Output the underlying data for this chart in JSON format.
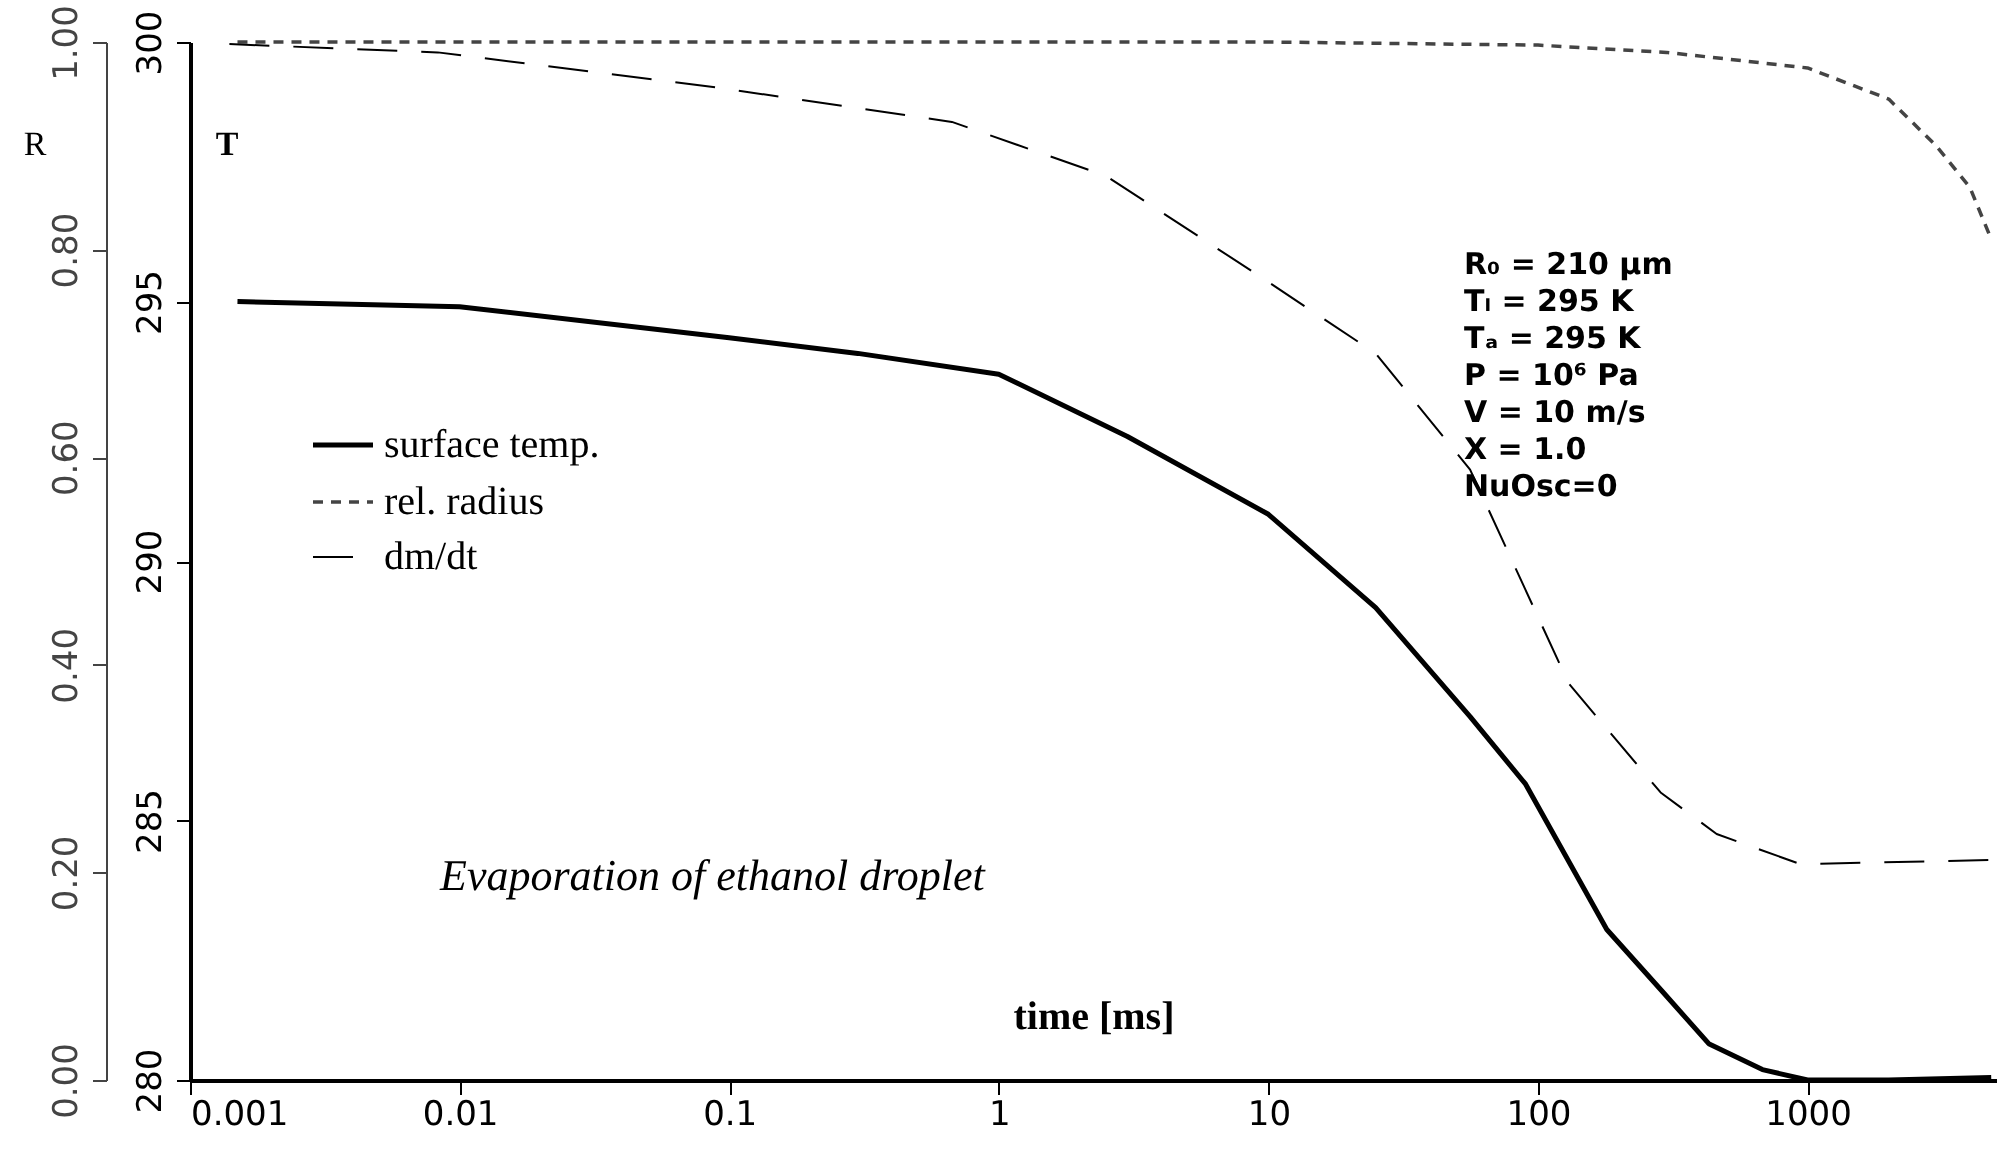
{
  "chart_data": {
    "type": "line",
    "xlabel": "time [ms]",
    "ylabel": "R",
    "y2label": "T",
    "log": "x",
    "legend": "left",
    "grid": false,
    "xlim": [
      0.001,
      5000
    ],
    "xticks": [
      0.001,
      0.01,
      0.1,
      1,
      10,
      100,
      1000
    ],
    "ylim": [
      0,
      1
    ],
    "yticks": [
      {
        "value": 0,
        "label": "0.00"
      },
      {
        "value": 0.2,
        "label": "0.20"
      },
      {
        "value": 0.4,
        "label": "0.40"
      },
      {
        "value": 0.6,
        "label": "0.60"
      },
      {
        "value": 0.8,
        "label": "0.80"
      },
      {
        "value": 1,
        "label": "1.00"
      }
    ],
    "y2lim": [
      280,
      300
    ],
    "y2ticks": [
      280,
      285,
      290,
      295,
      300
    ],
    "series": [
      {
        "name": "surface temp.",
        "color": "#000000",
        "line_style": "solid",
        "axis": "y2",
        "x": [
          0.0015,
          0.01,
          0.1,
          0.3,
          1,
          3,
          10,
          25,
          56,
          90,
          180,
          290,
          430,
          680,
          1000,
          2000,
          4800
        ],
        "values": [
          295.0,
          294.9,
          294.3,
          294.0,
          293.6,
          292.4,
          290.9,
          289.1,
          287.0,
          285.7,
          282.9,
          281.7,
          280.7,
          280.2,
          280.0,
          280.0,
          280.05
        ]
      },
      {
        "name": "rel. radius",
        "color": "#444444",
        "line_style": "dotted",
        "axis": "y",
        "x": [
          0.0015,
          10,
          100,
          300,
          1000,
          2000,
          3000,
          4000,
          4800
        ],
        "values": [
          1.0,
          1.0,
          0.997,
          0.99,
          0.975,
          0.945,
          0.9,
          0.86,
          0.81
        ]
      },
      {
        "name": "dm/dt",
        "color": "#000000",
        "line_style": "dashed",
        "axis": "y",
        "x": [
          0.0014,
          0.0083,
          0.091,
          0.67,
          2.5,
          9.2,
          25,
          56,
          130,
          285,
          460,
          940,
          4800
        ],
        "values": [
          0.998,
          0.99,
          0.956,
          0.923,
          0.871,
          0.775,
          0.7,
          0.588,
          0.382,
          0.277,
          0.237,
          0.208,
          0.212
        ]
      }
    ],
    "annotations": [
      "Evaporation of ethanol droplet",
      "R₀ = 210 μm",
      "Tₗ = 295 K",
      "Tₐ = 295 K",
      "P = 10⁶ Pa",
      "V = 10 m/s",
      "X = 1.0",
      "NuOsc=0"
    ]
  }
}
